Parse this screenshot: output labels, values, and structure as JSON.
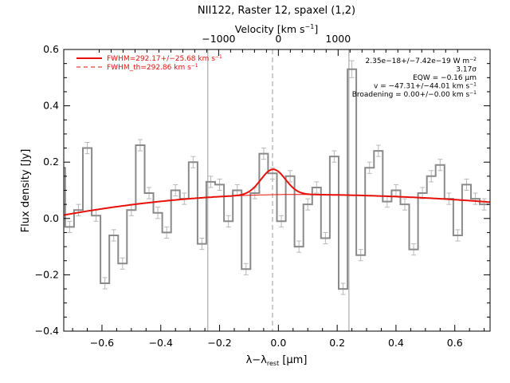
{
  "chart_data": {
    "type": "line",
    "title": "NII122, Raster 12, spaxel (1,2)",
    "xlabel_main": "λ−λ",
    "xlabel_sub": "rest",
    "xlabel_unit": " [μm]",
    "xlabel_top": "Velocity [km s",
    "xlabel_top_sup": "−1",
    "xlabel_top_end": "]",
    "ylabel": "Flux density [Jy]",
    "xlim": [
      -0.73,
      0.72
    ],
    "ylim": [
      -0.4,
      0.6
    ],
    "top_velocity_ticks": [
      -1000,
      0,
      1000
    ],
    "top_velocity_ticklabels": [
      "−1000",
      "0",
      "1000"
    ],
    "top_velocity_per_um": 4922,
    "x_ticks": [
      -0.6,
      -0.4,
      -0.2,
      0.0,
      0.2,
      0.4,
      0.6
    ],
    "x_ticklabels": [
      "−0.6",
      "−0.4",
      "−0.2",
      "0.0",
      "0.2",
      "0.4",
      "0.6"
    ],
    "y_ticks": [
      -0.4,
      -0.2,
      0.0,
      0.2,
      0.4,
      0.6
    ],
    "y_ticklabels": [
      "−0.4",
      "−0.2",
      "0.0",
      "0.2",
      "0.4",
      "0.6"
    ],
    "vlines_solid": [
      -0.24,
      0.24
    ],
    "vline_dashed": -0.02,
    "legend": [
      {
        "text": "FWHM=292.17+/−25.68 km s",
        "sup": "−1",
        "style": "solid"
      },
      {
        "text": "FWHM_th=292.86 km s",
        "sup": "−1",
        "style": "dashed"
      }
    ],
    "annotations": [
      {
        "text": "2.35e−18+/−7.42e−19 W m",
        "sup": "−2"
      },
      {
        "text": "3.17σ",
        "sup": ""
      },
      {
        "text": "EQW = −0.16 μm",
        "sup": ""
      },
      {
        "text": "v = −47.31+/−44.01 km s",
        "sup": "−1"
      },
      {
        "text": "Broadening = 0.00+/−0.00 km s",
        "sup": "−1"
      }
    ],
    "spectrum": {
      "name": "",
      "x": [
        -0.74,
        -0.71,
        -0.68,
        -0.65,
        -0.62,
        -0.59,
        -0.56,
        -0.53,
        -0.5,
        -0.47,
        -0.44,
        -0.41,
        -0.38,
        -0.35,
        -0.32,
        -0.29,
        -0.26,
        -0.23,
        -0.2,
        -0.17,
        -0.14,
        -0.11,
        -0.08,
        -0.05,
        -0.02,
        0.01,
        0.04,
        0.07,
        0.1,
        0.13,
        0.16,
        0.19,
        0.22,
        0.25,
        0.28,
        0.31,
        0.34,
        0.37,
        0.4,
        0.43,
        0.46,
        0.49,
        0.52,
        0.55,
        0.58,
        0.61,
        0.64,
        0.67,
        0.7
      ],
      "y": [
        0.18,
        -0.03,
        0.03,
        0.25,
        0.01,
        -0.23,
        -0.06,
        -0.16,
        0.03,
        0.26,
        0.09,
        0.02,
        -0.05,
        0.1,
        0.07,
        0.2,
        -0.09,
        0.13,
        0.12,
        -0.01,
        0.1,
        -0.18,
        0.09,
        0.23,
        0.16,
        -0.01,
        0.15,
        -0.1,
        0.05,
        0.11,
        -0.07,
        0.22,
        -0.25,
        0.53,
        -0.13,
        0.18,
        0.24,
        0.06,
        0.1,
        0.05,
        -0.11,
        0.09,
        0.15,
        0.19,
        0.07,
        -0.06,
        0.12,
        0.07,
        0.05
      ],
      "err": [
        0.02,
        0.02,
        0.02,
        0.02,
        0.02,
        0.02,
        0.02,
        0.02,
        0.02,
        0.02,
        0.02,
        0.02,
        0.02,
        0.02,
        0.02,
        0.02,
        0.02,
        0.02,
        0.02,
        0.02,
        0.02,
        0.02,
        0.02,
        0.02,
        0.02,
        0.02,
        0.02,
        0.02,
        0.02,
        0.02,
        0.02,
        0.02,
        0.02,
        0.03,
        0.02,
        0.02,
        0.02,
        0.02,
        0.02,
        0.02,
        0.02,
        0.02,
        0.02,
        0.02,
        0.02,
        0.02,
        0.02,
        0.02,
        0.02
      ]
    },
    "fit": {
      "baseline": {
        "start": 0.012,
        "peak": 0.085,
        "peak_at": 0.05,
        "end": 0.058
      },
      "gaussian": {
        "center": -0.018,
        "amplitude": 0.09,
        "sigma": 0.0416
      }
    },
    "colors": {
      "spectrum": "#8a8a8a",
      "errorbar": "#b8b8b8",
      "fit": "#e8100a",
      "axes": "#000000",
      "vline": "#9a9a9a",
      "text": "#000000"
    }
  }
}
